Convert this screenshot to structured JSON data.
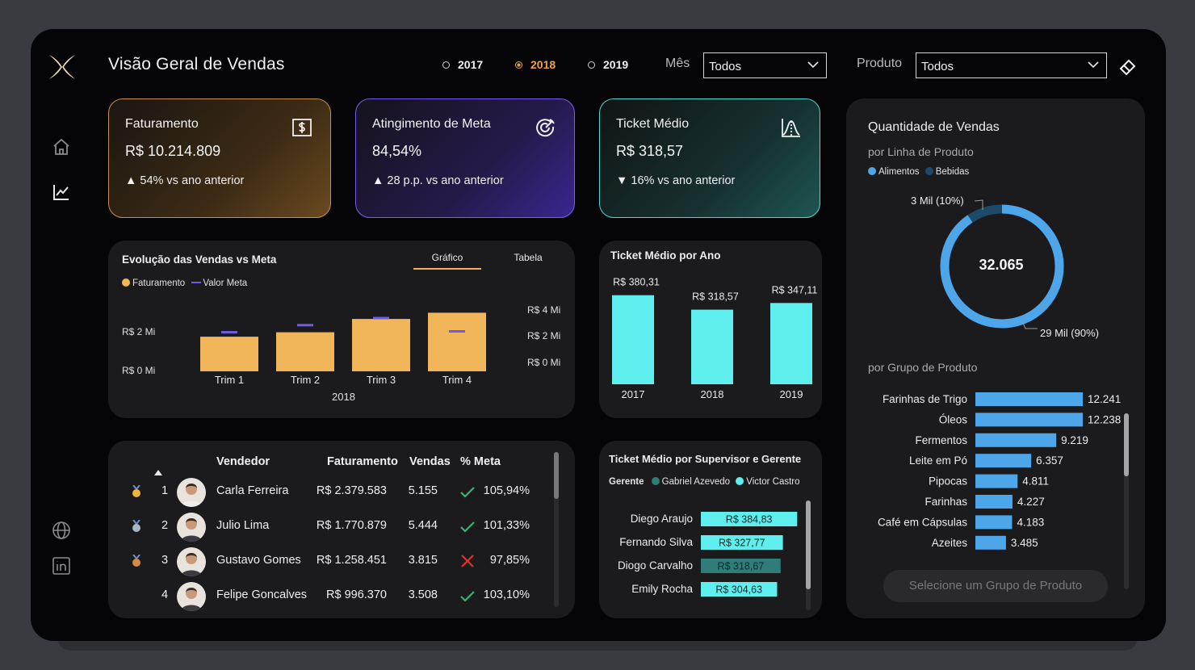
{
  "header": {
    "title": "Visão Geral de Vendas",
    "years": [
      {
        "label": "2017",
        "selected": false
      },
      {
        "label": "2018",
        "selected": true
      },
      {
        "label": "2019",
        "selected": false
      }
    ],
    "month_label": "Mês",
    "month_value": "Todos",
    "product_label": "Produto",
    "product_value": "Todos"
  },
  "colors": {
    "accent_orange": "#f0a04b",
    "bar_orange": "#f2b65a",
    "meta_purple": "#6e5ce6",
    "cyan": "#5eeeee",
    "blue": "#4da6ea",
    "dark_blue": "#1e4a6a"
  },
  "kpis": [
    {
      "title": "Faturamento",
      "value": "R$ 10.214.809",
      "delta": "▲ 54% vs ano anterior",
      "icon": "dollar-icon"
    },
    {
      "title": "Atingimento de Meta",
      "value": "84,54%",
      "delta": "▲ 28 p.p. vs ano anterior",
      "icon": "target-icon"
    },
    {
      "title": "Ticket Médio",
      "value": "R$ 318,57",
      "delta": "▼ 16% vs ano anterior",
      "icon": "bell-curve-icon"
    }
  ],
  "evolucao": {
    "title": "Evolução das Vendas vs Meta",
    "tabs": [
      "Gráfico",
      "Tabela"
    ],
    "legend": [
      "Faturamento",
      "Valor Meta"
    ],
    "left_ticks": [
      "R$ 2 Mi",
      "R$ 0 Mi"
    ],
    "right_ticks": [
      "R$ 4 Mi",
      "R$ 2 Mi",
      "R$ 0 Mi"
    ],
    "year_label": "2018"
  },
  "ticket_ano": {
    "title": "Ticket Médio por Ano"
  },
  "ranking": {
    "headers": {
      "vendedor": "Vendedor",
      "faturamento": "Faturamento",
      "vendas": "Vendas",
      "meta": "% Meta"
    },
    "rows": [
      {
        "rank": "1",
        "name": "Carla Ferreira",
        "faturamento": "R$ 2.379.583",
        "vendas": "5.155",
        "meta": "105,94%",
        "ok": true,
        "medal": "gold"
      },
      {
        "rank": "2",
        "name": "Julio Lima",
        "faturamento": "R$ 1.770.879",
        "vendas": "5.444",
        "meta": "101,33%",
        "ok": true,
        "medal": "silver"
      },
      {
        "rank": "3",
        "name": "Gustavo Gomes",
        "faturamento": "R$ 1.258.451",
        "vendas": "3.815",
        "meta": "97,85%",
        "ok": false,
        "medal": "bronze"
      },
      {
        "rank": "4",
        "name": "Felipe Goncalves",
        "faturamento": "R$ 996.370",
        "vendas": "3.508",
        "meta": "103,10%",
        "ok": true,
        "medal": ""
      }
    ]
  },
  "supervisor": {
    "title": "Ticket Médio por Supervisor e Gerente",
    "legend_label": "Gerente",
    "legend": [
      "Gabriel Azevedo",
      "Victor Castro"
    ]
  },
  "quantidade": {
    "title": "Quantidade de Vendas",
    "subtitle_linha": "por Linha de Produto",
    "legend": [
      "Alimentos",
      "Bebidas"
    ],
    "total": "32.065",
    "label_small": "3 Mil (10%)",
    "label_big": "29 Mil (90%)",
    "subtitle_grupo": "por Grupo de Produto",
    "button": "Selecione um Grupo de Produto"
  },
  "chart_data": [
    {
      "type": "bar",
      "title": "Evolução das Vendas vs Meta",
      "categories": [
        "Trim 1",
        "Trim 2",
        "Trim 3",
        "Trim 4"
      ],
      "series": [
        {
          "name": "Faturamento",
          "values": [
            1.95,
            2.2,
            2.95,
            3.3
          ]
        },
        {
          "name": "Valor Meta",
          "values": [
            2.2,
            2.6,
            3.0,
            2.25
          ]
        }
      ],
      "ylim": [
        0,
        4.6
      ]
    },
    {
      "type": "bar",
      "title": "Ticket Médio por Ano",
      "categories": [
        "2017",
        "2018",
        "2019"
      ],
      "values": [
        380.31,
        318.57,
        347.11
      ],
      "labels": [
        "R$ 380,31",
        "R$ 318,57",
        "R$ 347,11"
      ]
    },
    {
      "type": "bar",
      "title": "Ticket Médio por Supervisor e Gerente",
      "categories": [
        "Diego Araujo",
        "Fernando Silva",
        "Diogo Carvalho",
        "Emily Rocha"
      ],
      "values": [
        384.83,
        327.77,
        318.67,
        304.63
      ],
      "labels": [
        "R$ 384,83",
        "R$ 327,77",
        "R$ 318,67",
        "R$ 304,63"
      ],
      "gerente": [
        "Victor Castro",
        "Victor Castro",
        "Gabriel Azevedo",
        "Victor Castro"
      ]
    },
    {
      "type": "pie",
      "title": "Quantidade de Vendas",
      "categories": [
        "Alimentos",
        "Bebidas"
      ],
      "values": [
        29,
        3
      ]
    },
    {
      "type": "bar",
      "title": "por Grupo de Produto",
      "categories": [
        "Farinhas de Trigo",
        "Óleos",
        "Fermentos",
        "Leite em Pó",
        "Pipocas",
        "Farinhas",
        "Café em Cápsulas",
        "Azeites"
      ],
      "values": [
        12241,
        12238,
        9219,
        6357,
        4811,
        4227,
        4183,
        3485
      ],
      "labels": [
        "12.241",
        "12.238",
        "9.219",
        "6.357",
        "4.811",
        "4.227",
        "4.183",
        "3.485"
      ]
    }
  ]
}
